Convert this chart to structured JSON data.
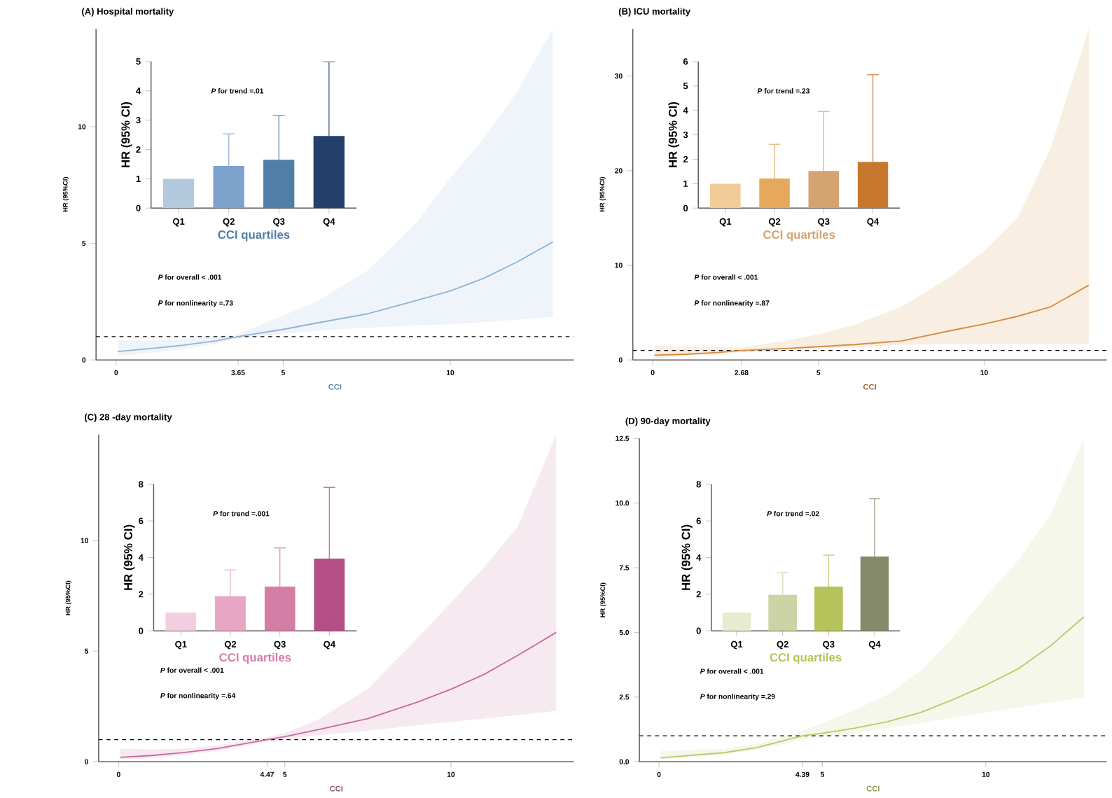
{
  "chart_data": [
    {
      "type": "line",
      "title": "(A)  Hospital mortality",
      "xlabel": "CCI",
      "ylabel": "HR (95%CI)",
      "xlim": [
        -0.6,
        13.7
      ],
      "ylim": [
        0,
        14.2
      ],
      "xticks": [
        0,
        3.65,
        5,
        10
      ],
      "yticks": [
        0,
        5,
        10
      ],
      "series": [
        {
          "color": "#8fb4d9",
          "x": [
            0.05,
            1,
            2,
            3,
            3.65,
            5,
            6,
            7.5,
            9,
            10,
            11,
            12,
            13.07
          ],
          "values": [
            0.36,
            0.48,
            0.63,
            0.82,
            1.0,
            1.31,
            1.58,
            1.97,
            2.55,
            2.96,
            3.5,
            4.2,
            5.06
          ],
          "lower": [
            0.18,
            0.3,
            0.45,
            0.7,
            0.92,
            1.12,
            1.25,
            1.38,
            1.48,
            1.53,
            1.62,
            1.72,
            1.85
          ],
          "upper": [
            0.84,
            0.82,
            0.9,
            1.0,
            1.1,
            1.9,
            2.5,
            3.8,
            5.9,
            7.8,
            9.5,
            11.5,
            14.2
          ]
        }
      ],
      "ref_lines": [
        {
          "axis": "y",
          "value": 1,
          "line_style": "dashed"
        }
      ],
      "annotations": [
        "*P* for overall < .001",
        "*P* for nonlinearity =.73"
      ]
    },
    {
      "type": "bar",
      "xlabel": "CCI quartiles",
      "ylabel": "HR (95% CI)",
      "categories": [
        "Q1",
        "Q2",
        "Q3",
        "Q4"
      ],
      "values": [
        1,
        1.44,
        1.65,
        2.46
      ],
      "colors": [
        "#b3c9de",
        "#7da2cb",
        "#517ea8",
        "#243f6b"
      ],
      "errors": [
        null,
        [
          1.44,
          2.53
        ],
        [
          1.65,
          3.16
        ],
        [
          2.46,
          4.99
        ]
      ],
      "ylim": [
        0,
        5
      ],
      "yticks": [
        0,
        1,
        2,
        3,
        4,
        5
      ],
      "annotations": [
        "*P* for trend =.01"
      ]
    },
    {
      "type": "line",
      "title": "(B)  ICU mortality",
      "xlabel": "CCI",
      "ylabel": "HR (95%CI)",
      "xlim": [
        -0.6,
        13.7
      ],
      "ylim": [
        0,
        35
      ],
      "xticks": [
        0,
        2.68,
        5,
        10
      ],
      "yticks": [
        0,
        10,
        20,
        30
      ],
      "series": [
        {
          "color": "#d98c3f",
          "x": [
            0.05,
            1,
            2,
            2.68,
            4,
            5,
            6,
            7.5,
            9,
            10,
            11,
            12,
            13.16
          ],
          "values": [
            0.5,
            0.6,
            0.8,
            1.0,
            1.2,
            1.4,
            1.6,
            2.0,
            3.1,
            3.8,
            4.6,
            5.6,
            7.9
          ],
          "lower": [
            0.2,
            0.4,
            0.6,
            0.8,
            1.0,
            1.2,
            1.3,
            1.6,
            1.65,
            1.7,
            1.7,
            1.7,
            1.7
          ],
          "upper": [
            1.5,
            1.4,
            1.3,
            1.3,
            2.0,
            2.7,
            3.6,
            5.6,
            8.8,
            11.5,
            15,
            22.3,
            35
          ]
        }
      ],
      "ref_lines": [
        {
          "axis": "y",
          "value": 1,
          "line_style": "dashed"
        }
      ],
      "annotations": [
        "*P* for overall < .001",
        "*P* for nonlinearity =.87"
      ]
    },
    {
      "type": "bar",
      "xlabel": "CCI quartiles",
      "ylabel": "HR (95% CI)",
      "categories": [
        "Q1",
        "Q2",
        "Q3",
        "Q4"
      ],
      "values": [
        1,
        1.21,
        1.52,
        1.89
      ],
      "colors": [
        "#f1cc99",
        "#e6a85c",
        "#d4a36f",
        "#c7782e"
      ],
      "errors": [
        null,
        [
          1.21,
          2.61
        ],
        [
          1.52,
          3.95
        ],
        [
          1.89,
          5.46
        ]
      ],
      "ylim": [
        0,
        6
      ],
      "yticks": [
        0,
        1,
        2,
        3,
        4,
        5,
        6
      ],
      "annotations": [
        "*P* for trend =.23"
      ]
    },
    {
      "type": "line",
      "title": "(C)  28 -day mortality",
      "xlabel": "CCI",
      "ylabel": "HR (95%CI)",
      "xlim": [
        -0.6,
        13.7
      ],
      "ylim": [
        0,
        14.8
      ],
      "xticks": [
        0,
        4.47,
        5,
        10
      ],
      "yticks": [
        0,
        5,
        10
      ],
      "series": [
        {
          "color": "#c96a9d",
          "x": [
            0.05,
            1,
            2,
            3,
            4.47,
            5,
            6,
            7.5,
            9,
            10,
            11,
            12,
            13.17
          ],
          "values": [
            0.2,
            0.28,
            0.42,
            0.6,
            1.0,
            1.13,
            1.45,
            1.95,
            2.7,
            3.28,
            3.95,
            4.8,
            5.85
          ],
          "lower": [
            0.1,
            0.16,
            0.3,
            0.5,
            0.9,
            1.0,
            1.2,
            1.4,
            1.65,
            1.8,
            1.95,
            2.1,
            2.3
          ],
          "upper": [
            0.6,
            0.55,
            0.6,
            0.75,
            1.1,
            1.3,
            1.9,
            3.3,
            5.6,
            7.2,
            8.8,
            10.6,
            14.8
          ]
        }
      ],
      "ref_lines": [
        {
          "axis": "y",
          "value": 1,
          "line_style": "dashed"
        }
      ],
      "annotations": [
        "*P* for overall < .001",
        "*P* for nonlinearity =.64"
      ]
    },
    {
      "type": "bar",
      "xlabel": "CCI quartiles",
      "ylabel": "HR (95% CI)",
      "categories": [
        "Q1",
        "Q2",
        "Q3",
        "Q4"
      ],
      "values": [
        1,
        1.89,
        2.41,
        3.94
      ],
      "colors": [
        "#f2cfe0",
        "#e7a6c3",
        "#d47ea6",
        "#b34f86"
      ],
      "errors": [
        null,
        [
          1.89,
          3.32
        ],
        [
          2.41,
          4.53
        ],
        [
          3.94,
          7.83
        ]
      ],
      "ylim": [
        0,
        8
      ],
      "yticks": [
        0,
        2,
        4,
        6,
        8
      ],
      "annotations": [
        "*P* for trend =.001"
      ]
    },
    {
      "type": "line",
      "title": "(D)  90-day mortality",
      "xlabel": "CCI",
      "ylabel": "HR (95%CI)",
      "xlim": [
        -0.6,
        13.7
      ],
      "ylim": [
        0,
        12.5
      ],
      "xticks": [
        0,
        4.39,
        5,
        10
      ],
      "yticks": [
        {
          "value": 0,
          "label": "0.0"
        },
        {
          "value": 2.5,
          "label": "2.5"
        },
        {
          "value": 5,
          "label": "5.0"
        },
        {
          "value": 7.5,
          "label": "7.5"
        },
        {
          "value": 10,
          "label": "10.0"
        },
        {
          "value": 12.5,
          "label": "12.5"
        }
      ],
      "series": [
        {
          "color": "#b8cc6a",
          "x": [
            0.05,
            2,
            3,
            4.39,
            5,
            6,
            7,
            8,
            9,
            10,
            11,
            12,
            13.0
          ],
          "values": [
            0.15,
            0.35,
            0.55,
            1.0,
            1.1,
            1.3,
            1.55,
            1.9,
            2.4,
            2.96,
            3.6,
            4.5,
            5.6
          ],
          "lower": [
            0.08,
            0.28,
            0.48,
            0.85,
            0.95,
            1.1,
            1.3,
            1.5,
            1.7,
            1.9,
            2.1,
            2.3,
            2.48
          ],
          "upper": [
            0.4,
            0.5,
            0.7,
            1.2,
            1.5,
            2.0,
            2.6,
            3.5,
            4.8,
            6.4,
            7.8,
            9.6,
            12.5
          ]
        }
      ],
      "ref_lines": [
        {
          "axis": "y",
          "value": 1,
          "line_style": "dashed"
        }
      ],
      "annotations": [
        "*P* for overall < .001",
        "*P* for nonlinearity =.29"
      ]
    },
    {
      "type": "bar",
      "xlabel": "CCI quartiles",
      "ylabel": "HR (95% CI)",
      "categories": [
        "Q1",
        "Q2",
        "Q3",
        "Q4"
      ],
      "values": [
        1,
        1.96,
        2.41,
        4.06
      ],
      "colors": [
        "#e8ebd0",
        "#cbd4a5",
        "#b6c35a",
        "#848a6a"
      ],
      "errors": [
        null,
        [
          1.96,
          3.17
        ],
        [
          2.41,
          4.13
        ],
        [
          4.06,
          7.21
        ]
      ],
      "ylim": [
        0,
        8
      ],
      "yticks": [
        0,
        2,
        4,
        6,
        8
      ],
      "annotations": [
        "*P* for trend =.02"
      ]
    }
  ]
}
